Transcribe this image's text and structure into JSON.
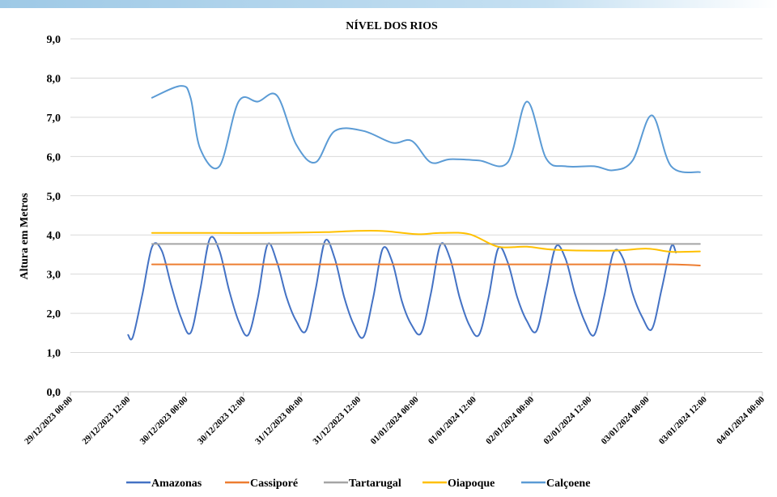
{
  "chart_data": {
    "type": "line",
    "title": "NÍVEL DOS RIOS",
    "xlabel": "",
    "ylabel": "Altura em Metros",
    "ylim": [
      0,
      9
    ],
    "y_ticks": [
      "0,0",
      "1,0",
      "2,0",
      "3,0",
      "4,0",
      "5,0",
      "6,0",
      "7,0",
      "8,0",
      "9,0"
    ],
    "x_range_days": [
      0,
      6
    ],
    "x_ticks": [
      "29/12/2023 00:00",
      "29/12/2023 12:00",
      "30/12/2023 00:00",
      "30/12/2023 12:00",
      "31/12/2023 00:00",
      "31/12/2023 12:00",
      "01/01/2024 00:00",
      "01/01/2024 12:00",
      "02/01/2024 00:00",
      "02/01/2024 12:00",
      "03/01/2024 00:00",
      "03/01/2024 12:00",
      "04/01/2024 00:00"
    ],
    "grid": true,
    "legend_position": "bottom",
    "series": [
      {
        "name": "Amazonas",
        "color": "#4472C4",
        "points": [
          [
            "29/12/2023 12:00",
            1.45
          ],
          [
            "29/12/2023 13:00",
            1.4
          ],
          [
            "29/12/2023 15:00",
            2.5
          ],
          [
            "29/12/2023 17:00",
            3.7
          ],
          [
            "29/12/2023 19:00",
            3.6
          ],
          [
            "29/12/2023 21:00",
            2.7
          ],
          [
            "29/12/2023 23:00",
            1.9
          ],
          [
            "30/12/2023 01:00",
            1.5
          ],
          [
            "30/12/2023 03:00",
            2.6
          ],
          [
            "30/12/2023 05:00",
            3.9
          ],
          [
            "30/12/2023 07:00",
            3.6
          ],
          [
            "30/12/2023 09:00",
            2.6
          ],
          [
            "30/12/2023 11:00",
            1.8
          ],
          [
            "30/12/2023 13:00",
            1.45
          ],
          [
            "30/12/2023 15:00",
            2.4
          ],
          [
            "30/12/2023 17:00",
            3.75
          ],
          [
            "30/12/2023 19:00",
            3.3
          ],
          [
            "30/12/2023 21:00",
            2.4
          ],
          [
            "30/12/2023 23:00",
            1.8
          ],
          [
            "31/12/2023 01:00",
            1.55
          ],
          [
            "31/12/2023 03:00",
            2.6
          ],
          [
            "31/12/2023 05:00",
            3.85
          ],
          [
            "31/12/2023 07:00",
            3.4
          ],
          [
            "31/12/2023 09:00",
            2.4
          ],
          [
            "31/12/2023 11:00",
            1.7
          ],
          [
            "31/12/2023 13:00",
            1.4
          ],
          [
            "31/12/2023 15:00",
            2.4
          ],
          [
            "31/12/2023 17:00",
            3.65
          ],
          [
            "31/12/2023 19:00",
            3.3
          ],
          [
            "31/12/2023 21:00",
            2.3
          ],
          [
            "31/12/2023 23:00",
            1.7
          ],
          [
            "01/01/2024 01:00",
            1.5
          ],
          [
            "01/01/2024 03:00",
            2.5
          ],
          [
            "01/01/2024 05:00",
            3.75
          ],
          [
            "01/01/2024 07:00",
            3.4
          ],
          [
            "01/01/2024 09:00",
            2.4
          ],
          [
            "01/01/2024 11:00",
            1.7
          ],
          [
            "01/01/2024 13:00",
            1.45
          ],
          [
            "01/01/2024 15:00",
            2.4
          ],
          [
            "01/01/2024 17:00",
            3.65
          ],
          [
            "01/01/2024 19:00",
            3.3
          ],
          [
            "01/01/2024 21:00",
            2.4
          ],
          [
            "01/01/2024 23:00",
            1.8
          ],
          [
            "02/01/2024 01:00",
            1.55
          ],
          [
            "02/01/2024 03:00",
            2.6
          ],
          [
            "02/01/2024 05:00",
            3.7
          ],
          [
            "02/01/2024 07:00",
            3.4
          ],
          [
            "02/01/2024 09:00",
            2.5
          ],
          [
            "02/01/2024 11:00",
            1.8
          ],
          [
            "02/01/2024 13:00",
            1.45
          ],
          [
            "02/01/2024 15:00",
            2.4
          ],
          [
            "02/01/2024 17:00",
            3.55
          ],
          [
            "02/01/2024 19:00",
            3.4
          ],
          [
            "02/01/2024 21:00",
            2.5
          ],
          [
            "02/01/2024 23:00",
            1.9
          ],
          [
            "03/01/2024 01:00",
            1.6
          ],
          [
            "03/01/2024 03:00",
            2.6
          ],
          [
            "03/01/2024 05:00",
            3.7
          ],
          [
            "03/01/2024 06:00",
            3.55
          ]
        ]
      },
      {
        "name": "Cassiporé",
        "color": "#ED7D31",
        "points": [
          [
            "29/12/2023 17:00",
            3.25
          ],
          [
            "30/12/2023 05:00",
            3.25
          ],
          [
            "30/12/2023 17:00",
            3.25
          ],
          [
            "31/12/2023 05:00",
            3.25
          ],
          [
            "31/12/2023 17:00",
            3.25
          ],
          [
            "01/01/2024 05:00",
            3.25
          ],
          [
            "01/01/2024 17:00",
            3.25
          ],
          [
            "02/01/2024 05:00",
            3.25
          ],
          [
            "02/01/2024 17:00",
            3.25
          ],
          [
            "03/01/2024 05:00",
            3.25
          ],
          [
            "03/01/2024 11:00",
            3.22
          ]
        ]
      },
      {
        "name": "Tartarugal",
        "color": "#A5A5A5",
        "points": [
          [
            "29/12/2023 17:00",
            3.77
          ],
          [
            "30/12/2023 05:00",
            3.77
          ],
          [
            "30/12/2023 17:00",
            3.77
          ],
          [
            "31/12/2023 05:00",
            3.77
          ],
          [
            "31/12/2023 17:00",
            3.77
          ],
          [
            "01/01/2024 05:00",
            3.77
          ],
          [
            "01/01/2024 17:00",
            3.77
          ],
          [
            "02/01/2024 05:00",
            3.77
          ],
          [
            "02/01/2024 17:00",
            3.77
          ],
          [
            "03/01/2024 05:00",
            3.77
          ],
          [
            "03/01/2024 11:00",
            3.77
          ]
        ]
      },
      {
        "name": "Oiapoque",
        "color": "#FFC000",
        "points": [
          [
            "29/12/2023 17:00",
            4.05
          ],
          [
            "30/12/2023 05:00",
            4.05
          ],
          [
            "30/12/2023 17:00",
            4.05
          ],
          [
            "31/12/2023 05:00",
            4.07
          ],
          [
            "31/12/2023 11:00",
            4.1
          ],
          [
            "31/12/2023 17:00",
            4.1
          ],
          [
            "01/01/2024 00:00",
            4.02
          ],
          [
            "01/01/2024 05:00",
            4.05
          ],
          [
            "01/01/2024 11:00",
            4.02
          ],
          [
            "01/01/2024 17:00",
            3.7
          ],
          [
            "01/01/2024 23:00",
            3.7
          ],
          [
            "02/01/2024 05:00",
            3.62
          ],
          [
            "02/01/2024 17:00",
            3.6
          ],
          [
            "03/01/2024 00:00",
            3.65
          ],
          [
            "03/01/2024 05:00",
            3.57
          ],
          [
            "03/01/2024 11:00",
            3.58
          ]
        ]
      },
      {
        "name": "Calçoene",
        "color": "#5B9BD5",
        "points": [
          [
            "29/12/2023 17:00",
            7.5
          ],
          [
            "29/12/2023 23:00",
            7.8
          ],
          [
            "30/12/2023 01:00",
            7.5
          ],
          [
            "30/12/2023 03:00",
            6.2
          ],
          [
            "30/12/2023 07:00",
            5.75
          ],
          [
            "30/12/2023 11:00",
            7.4
          ],
          [
            "30/12/2023 15:00",
            7.4
          ],
          [
            "30/12/2023 19:00",
            7.55
          ],
          [
            "30/12/2023 23:00",
            6.3
          ],
          [
            "31/12/2023 03:00",
            5.85
          ],
          [
            "31/12/2023 07:00",
            6.65
          ],
          [
            "31/12/2023 13:00",
            6.65
          ],
          [
            "31/12/2023 19:00",
            6.35
          ],
          [
            "31/12/2023 23:00",
            6.4
          ],
          [
            "01/01/2024 03:00",
            5.85
          ],
          [
            "01/01/2024 07:00",
            5.93
          ],
          [
            "01/01/2024 13:00",
            5.9
          ],
          [
            "01/01/2024 19:00",
            5.85
          ],
          [
            "01/01/2024 23:00",
            7.4
          ],
          [
            "02/01/2024 03:00",
            5.95
          ],
          [
            "02/01/2024 07:00",
            5.75
          ],
          [
            "02/01/2024 13:00",
            5.75
          ],
          [
            "02/01/2024 17:00",
            5.65
          ],
          [
            "02/01/2024 21:00",
            5.9
          ],
          [
            "03/01/2024 01:00",
            7.05
          ],
          [
            "03/01/2024 05:00",
            5.75
          ],
          [
            "03/01/2024 11:00",
            5.6
          ]
        ]
      }
    ]
  }
}
